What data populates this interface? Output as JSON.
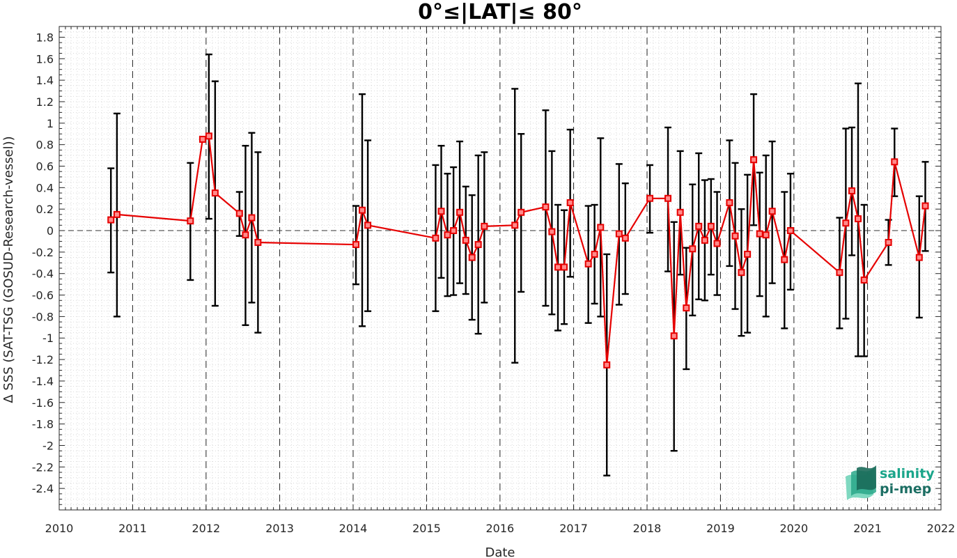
{
  "chart_data": {
    "type": "line",
    "title": "0°≤|LAT|≤ 80°",
    "xlabel": "Date",
    "ylabel": "Δ SSS (SAT-TSG (GOSUD-Research-vessel))",
    "xlim": [
      "2010-01-01",
      "2022-01-01"
    ],
    "ylim": [
      -2.6,
      1.9
    ],
    "x_ticks": [
      "2010",
      "2011",
      "2012",
      "2013",
      "2014",
      "2015",
      "2016",
      "2017",
      "2018",
      "2019",
      "2020",
      "2021",
      "2022"
    ],
    "y_ticks": [
      "1.8",
      "1.6",
      "1.4",
      "1.2",
      "1",
      "0.8",
      "0.6",
      "0.4",
      "0.2",
      "0",
      "-0.2",
      "-0.4",
      "-0.6",
      "-0.8",
      "-1",
      "-1.2",
      "-1.4",
      "-1.6",
      "-1.8",
      "-2",
      "-2.2",
      "-2.4"
    ],
    "grid": "minor dotted",
    "year_lines": "dashed",
    "zero_line": "dashed",
    "colors": {
      "line": "#e60000",
      "errorbar": "#000000",
      "grid": "#d0d0d0"
    },
    "series": [
      {
        "points": [
          {
            "x": "2010-09-15",
            "y": 0.1,
            "lo": -0.39,
            "hi": 0.58
          },
          {
            "x": "2010-10-15",
            "y": 0.15,
            "lo": -0.8,
            "hi": 1.09
          },
          {
            "x": "2011-10-15",
            "y": 0.09,
            "lo": -0.46,
            "hi": 0.63
          },
          {
            "x": "2011-12-15",
            "y": 0.85,
            "lo": 0.85,
            "hi": 0.87
          },
          {
            "x": "2012-01-15",
            "y": 0.88,
            "lo": 0.11,
            "hi": 1.64
          },
          {
            "x": "2012-02-15",
            "y": 0.35,
            "lo": -0.7,
            "hi": 1.39
          },
          {
            "x": "2012-06-15",
            "y": 0.16,
            "lo": -0.05,
            "hi": 0.36
          },
          {
            "x": "2012-07-15",
            "y": -0.04,
            "lo": -0.88,
            "hi": 0.79
          },
          {
            "x": "2012-08-15",
            "y": 0.12,
            "lo": -0.67,
            "hi": 0.91
          },
          {
            "x": "2012-09-15",
            "y": -0.11,
            "lo": -0.95,
            "hi": 0.73
          },
          {
            "x": "2014-01-15",
            "y": -0.13,
            "lo": -0.5,
            "hi": 0.23
          },
          {
            "x": "2014-02-15",
            "y": 0.19,
            "lo": -0.89,
            "hi": 1.27
          },
          {
            "x": "2014-03-15",
            "y": 0.05,
            "lo": -0.75,
            "hi": 0.84
          },
          {
            "x": "2015-02-15",
            "y": -0.07,
            "lo": -0.75,
            "hi": 0.61
          },
          {
            "x": "2015-03-15",
            "y": 0.18,
            "lo": -0.44,
            "hi": 0.79
          },
          {
            "x": "2015-04-15",
            "y": -0.04,
            "lo": -0.61,
            "hi": 0.53
          },
          {
            "x": "2015-05-15",
            "y": 0.0,
            "lo": -0.6,
            "hi": 0.59
          },
          {
            "x": "2015-06-15",
            "y": 0.17,
            "lo": -0.49,
            "hi": 0.83
          },
          {
            "x": "2015-07-15",
            "y": -0.09,
            "lo": -0.59,
            "hi": 0.41
          },
          {
            "x": "2015-08-15",
            "y": -0.25,
            "lo": -0.83,
            "hi": 0.33
          },
          {
            "x": "2015-09-15",
            "y": -0.13,
            "lo": -0.96,
            "hi": 0.7
          },
          {
            "x": "2015-10-15",
            "y": 0.04,
            "lo": -0.67,
            "hi": 0.73
          },
          {
            "x": "2016-03-15",
            "y": 0.05,
            "lo": -1.23,
            "hi": 1.32
          },
          {
            "x": "2016-04-15",
            "y": 0.17,
            "lo": -0.57,
            "hi": 0.9
          },
          {
            "x": "2016-08-15",
            "y": 0.22,
            "lo": -0.7,
            "hi": 1.12
          },
          {
            "x": "2016-09-15",
            "y": -0.01,
            "lo": -0.78,
            "hi": 0.74
          },
          {
            "x": "2016-10-15",
            "y": -0.34,
            "lo": -0.93,
            "hi": 0.24
          },
          {
            "x": "2016-11-15",
            "y": -0.34,
            "lo": -0.87,
            "hi": 0.19
          },
          {
            "x": "2016-12-15",
            "y": 0.26,
            "lo": -0.43,
            "hi": 0.94
          },
          {
            "x": "2017-03-15",
            "y": -0.31,
            "lo": -0.86,
            "hi": 0.23
          },
          {
            "x": "2017-04-15",
            "y": -0.22,
            "lo": -0.68,
            "hi": 0.24
          },
          {
            "x": "2017-05-15",
            "y": 0.03,
            "lo": -0.8,
            "hi": 0.86
          },
          {
            "x": "2017-06-15",
            "y": -1.25,
            "lo": -2.28,
            "hi": -0.22
          },
          {
            "x": "2017-08-15",
            "y": -0.03,
            "lo": -0.69,
            "hi": 0.62
          },
          {
            "x": "2017-09-15",
            "y": -0.07,
            "lo": -0.59,
            "hi": 0.44
          },
          {
            "x": "2018-01-15",
            "y": 0.3,
            "lo": -0.02,
            "hi": 0.61
          },
          {
            "x": "2018-04-15",
            "y": 0.3,
            "lo": -0.38,
            "hi": 0.96
          },
          {
            "x": "2018-05-15",
            "y": -0.98,
            "lo": -2.05,
            "hi": 0.08
          },
          {
            "x": "2018-06-15",
            "y": 0.17,
            "lo": -0.41,
            "hi": 0.74
          },
          {
            "x": "2018-07-15",
            "y": -0.72,
            "lo": -1.29,
            "hi": -0.16
          },
          {
            "x": "2018-08-15",
            "y": -0.17,
            "lo": -0.79,
            "hi": 0.43
          },
          {
            "x": "2018-09-15",
            "y": 0.04,
            "lo": -0.64,
            "hi": 0.72
          },
          {
            "x": "2018-10-15",
            "y": -0.09,
            "lo": -0.65,
            "hi": 0.47
          },
          {
            "x": "2018-11-15",
            "y": 0.04,
            "lo": -0.41,
            "hi": 0.48
          },
          {
            "x": "2018-12-15",
            "y": -0.12,
            "lo": -0.6,
            "hi": 0.36
          },
          {
            "x": "2019-02-15",
            "y": 0.26,
            "lo": -0.33,
            "hi": 0.84
          },
          {
            "x": "2019-03-15",
            "y": -0.05,
            "lo": -0.73,
            "hi": 0.63
          },
          {
            "x": "2019-04-15",
            "y": -0.39,
            "lo": -0.98,
            "hi": 0.2
          },
          {
            "x": "2019-05-15",
            "y": -0.22,
            "lo": -0.95,
            "hi": 0.52
          },
          {
            "x": "2019-06-15",
            "y": 0.66,
            "lo": 0.05,
            "hi": 1.27
          },
          {
            "x": "2019-07-15",
            "y": -0.03,
            "lo": -0.61,
            "hi": 0.54
          },
          {
            "x": "2019-08-15",
            "y": -0.04,
            "lo": -0.8,
            "hi": 0.7
          },
          {
            "x": "2019-09-15",
            "y": 0.18,
            "lo": -0.49,
            "hi": 0.83
          },
          {
            "x": "2019-11-15",
            "y": -0.27,
            "lo": -0.91,
            "hi": 0.36
          },
          {
            "x": "2019-12-15",
            "y": 0.0,
            "lo": -0.55,
            "hi": 0.53
          },
          {
            "x": "2020-08-15",
            "y": -0.39,
            "lo": -0.91,
            "hi": 0.12
          },
          {
            "x": "2020-09-15",
            "y": 0.07,
            "lo": -0.82,
            "hi": 0.95
          },
          {
            "x": "2020-10-15",
            "y": 0.37,
            "lo": -0.23,
            "hi": 0.96
          },
          {
            "x": "2020-11-15",
            "y": 0.11,
            "lo": -1.17,
            "hi": 1.37
          },
          {
            "x": "2020-12-15",
            "y": -0.46,
            "lo": -1.17,
            "hi": 0.24
          },
          {
            "x": "2021-04-15",
            "y": -0.11,
            "lo": -0.32,
            "hi": 0.1
          },
          {
            "x": "2021-05-15",
            "y": 0.64,
            "lo": 0.32,
            "hi": 0.95
          },
          {
            "x": "2021-09-15",
            "y": -0.25,
            "lo": -0.81,
            "hi": 0.32
          },
          {
            "x": "2021-10-15",
            "y": 0.23,
            "lo": -0.19,
            "hi": 0.64
          }
        ]
      }
    ]
  },
  "logo": {
    "line1": "salinity",
    "line2": "pi-mep",
    "colors": {
      "text1": "#1aa58a",
      "text2": "#1c6e63",
      "wave_a": "#7fd8c0",
      "wave_b": "#2aa889",
      "wave_c": "#1b6b5a"
    }
  }
}
